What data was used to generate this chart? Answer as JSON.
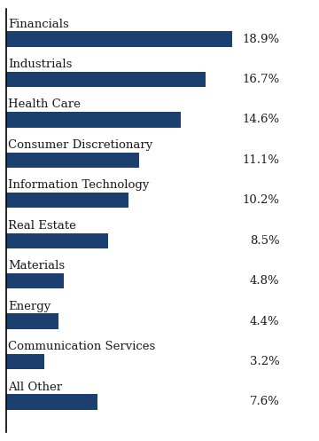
{
  "categories": [
    "Financials",
    "Industrials",
    "Health Care",
    "Consumer Discretionary",
    "Information Technology",
    "Real Estate",
    "Materials",
    "Energy",
    "Communication Services",
    "All Other"
  ],
  "values": [
    18.9,
    16.7,
    14.6,
    11.1,
    10.2,
    8.5,
    4.8,
    4.4,
    3.2,
    7.6
  ],
  "bar_color": "#1b3f6e",
  "label_color": "#1a1a1a",
  "value_color": "#1a1a1a",
  "background_color": "#ffffff",
  "bar_height": 0.38,
  "label_fontsize": 9.5,
  "value_fontsize": 9.5,
  "xlim": [
    0,
    23
  ],
  "figsize": [
    3.6,
    4.97
  ],
  "dpi": 100
}
